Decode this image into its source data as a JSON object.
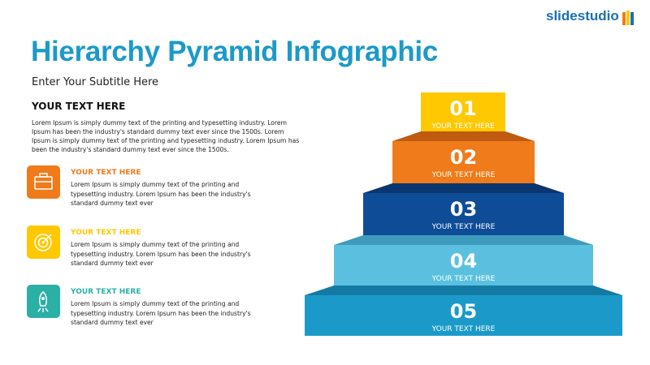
{
  "logo": "slidestudio",
  "header": {
    "title": "Hierarchy Pyramid Infographic",
    "subtitle": "Enter Your Subtitle Here"
  },
  "intro": {
    "heading": "YOUR TEXT HERE",
    "body": "Lorem Ipsum is simply dummy text of the printing and typesetting industry. Lorem Ipsum has been the industry's standard dummy text ever since the 1500s. Lorem Ipsum is simply dummy text of the printing and typesetting industry. Lorem Ipsum has been the industry's standard dummy text ever since the 1500s."
  },
  "items": [
    {
      "heading": "YOUR TEXT HERE",
      "body": "Lorem Ipsum is simply dummy text of the printing and typesetting industry. Lorem Ipsum has been the industry's standard dummy text ever"
    },
    {
      "heading": "YOUR TEXT HERE",
      "body": "Lorem Ipsum is simply dummy text of the printing and typesetting industry. Lorem Ipsum has been the industry's standard dummy text ever"
    },
    {
      "heading": "YOUR TEXT HERE",
      "body": "Lorem Ipsum is simply dummy text of the printing and typesetting industry. Lorem Ipsum has been the industry's standard dummy text ever"
    }
  ],
  "pyramid": [
    {
      "number": "01",
      "label": "YOUR TEXT HERE"
    },
    {
      "number": "02",
      "label": "YOUR TEXT HERE"
    },
    {
      "number": "03",
      "label": "YOUR TEXT HERE"
    },
    {
      "number": "04",
      "label": "YOUR TEXT HERE"
    },
    {
      "number": "05",
      "label": "YOUR TEXT HERE"
    }
  ]
}
